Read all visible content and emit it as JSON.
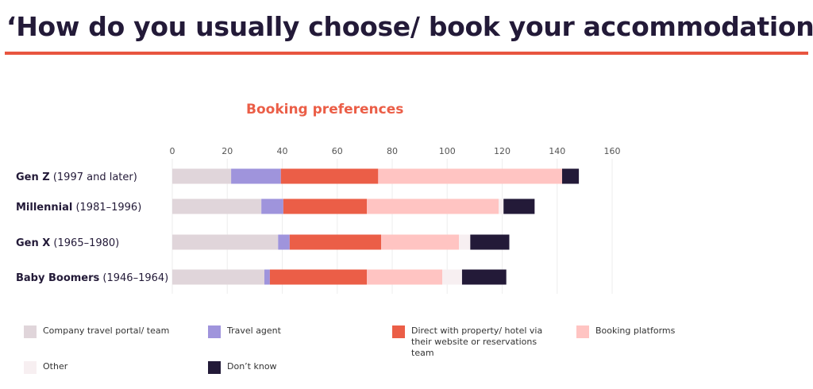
{
  "title": "‘How do you usually choose/ book your accommodation?’",
  "chart_data": {
    "type": "bar",
    "orientation": "horizontal",
    "stacked": true,
    "title": "Booking preferences",
    "xlim": [
      0,
      160
    ],
    "xticks": [
      0,
      20,
      40,
      60,
      80,
      100,
      120,
      140,
      160
    ],
    "grid": true,
    "legend_position": "bottom",
    "categories": [
      {
        "bold": "Gen Z",
        "rest": " (1997 and later)"
      },
      {
        "bold": "Millennial",
        "rest": " (1981–1996)"
      },
      {
        "bold": "Gen X",
        "rest": " (1965–1980)"
      },
      {
        "bold": "Baby Boomers",
        "rest": " (1946–1964)"
      }
    ],
    "series": [
      {
        "name": "Company travel portal/ team",
        "color": "#e0d5da",
        "values": [
          21.4,
          32.4,
          38.5,
          33.5
        ]
      },
      {
        "name": "Travel agent",
        "color": "#9f94dc",
        "values": [
          18.1,
          8.0,
          4.2,
          2.0
        ]
      },
      {
        "name": "Direct with property/ hotel via their website or reservations team",
        "color": "#eb5e47",
        "values": [
          35.4,
          30.4,
          33.3,
          35.3
        ]
      },
      {
        "name": "Booking platforms",
        "color": "#ffc4c2",
        "values": [
          66.9,
          47.9,
          28.3,
          27.4
        ]
      },
      {
        "name": "Other",
        "color": "#f7eff1",
        "values": [
          0,
          1.8,
          4.1,
          7.2
        ]
      },
      {
        "name": "Don’t know",
        "color": "#231a38",
        "values": [
          6.1,
          11.3,
          14.2,
          16.1
        ]
      }
    ]
  }
}
